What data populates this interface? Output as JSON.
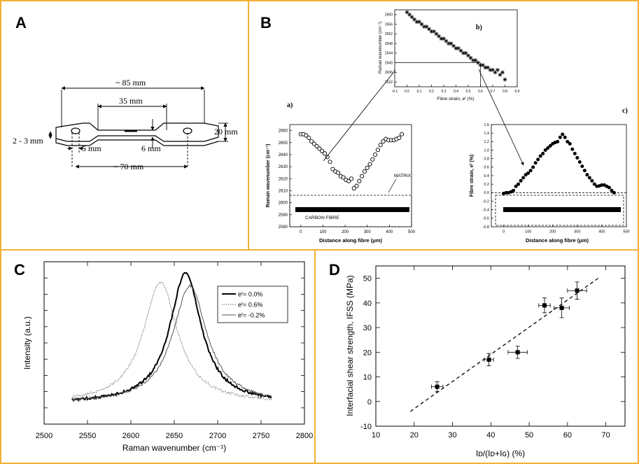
{
  "panels": {
    "A": {
      "letter": "A",
      "dims": {
        "overall_length": "~ 85 mm",
        "gauge_length": "35 mm",
        "width": "20 mm",
        "thickness": "2 - 3 mm",
        "hole_dia": "5 mm",
        "neck_width": "6 mm",
        "hole_spacing": "~ 70 mm"
      }
    },
    "B": {
      "letter": "B",
      "sub_a_label": "a)",
      "sub_b_label": "b)",
      "sub_c_label": "c)",
      "matrix_label": "MATRIX",
      "fibre_label": "CARBON FIBRE",
      "plot_a_xlabel": "Distance along fibre (μm)",
      "plot_a_ylabel": "Raman wavenumber (cm⁻¹)",
      "plot_b_xlabel": "Fibre strain, eᶠ (%)",
      "plot_b_ylabel": "Raman wavenumber (cm⁻¹)",
      "plot_c_xlabel": "Distance along fibre (μm)",
      "plot_c_ylabel": "Fibre strain, eᶠ (%)"
    },
    "C": {
      "letter": "C",
      "xlabel": "Raman wavenumber (cm⁻¹)",
      "ylabel": "Intensity (a.u.)",
      "legend": [
        "eᶠ= 0.0%",
        "eᶠ= 0.6%",
        "eᶠ= -0.2%"
      ]
    },
    "D": {
      "letter": "D",
      "xlabel": "Iᴅ/(Iᴅ+Iɢ) (%)",
      "ylabel": "Interfacial shear strength, IFSS (MPa)"
    }
  },
  "chart_data": [
    {
      "id": "B-a",
      "type": "scatter",
      "xlabel": "Distance along fibre (μm)",
      "ylabel": "Raman wavenumber (cm⁻¹)",
      "xlim": [
        -50,
        500
      ],
      "ylim": [
        2580,
        2665
      ],
      "xticks": [
        0,
        100,
        200,
        300,
        400,
        500
      ],
      "yticks": [
        2580,
        2590,
        2600,
        2610,
        2620,
        2630,
        2640,
        2650,
        2660
      ],
      "x": [
        0,
        12,
        24,
        36,
        48,
        60,
        72,
        84,
        96,
        108,
        120,
        132,
        144,
        156,
        168,
        180,
        192,
        204,
        216,
        228,
        240,
        252,
        264,
        276,
        288,
        300,
        312,
        324,
        336,
        348,
        360,
        372,
        384,
        396,
        408,
        420,
        432,
        444,
        456
      ],
      "y": [
        2657,
        2657,
        2656,
        2654,
        2651,
        2649,
        2647,
        2645,
        2643,
        2641,
        2638,
        2634,
        2628,
        2626,
        2625,
        2622,
        2621,
        2619,
        2618,
        2620,
        2612,
        2614,
        2618,
        2622,
        2626,
        2629,
        2632,
        2636,
        2640,
        2644,
        2648,
        2651,
        2653,
        2652,
        2652,
        2652,
        2653,
        2654,
        2657
      ]
    },
    {
      "id": "B-b",
      "type": "scatter",
      "xlabel": "Fibre strain, eᶠ (%)",
      "ylabel": "Raman wavenumber (cm⁻¹)",
      "xlim": [
        -0.1,
        0.9
      ],
      "ylim": [
        2630,
        2662
      ],
      "xticks": [
        -0.1,
        0.0,
        0.1,
        0.2,
        0.3,
        0.4,
        0.5,
        0.6,
        0.7,
        0.8,
        0.9
      ],
      "yticks": [
        2632,
        2636,
        2640,
        2644,
        2648,
        2652,
        2656,
        2660
      ],
      "x": [
        0.0,
        0.02,
        0.04,
        0.06,
        0.08,
        0.1,
        0.12,
        0.14,
        0.16,
        0.18,
        0.2,
        0.22,
        0.24,
        0.26,
        0.28,
        0.3,
        0.32,
        0.34,
        0.36,
        0.38,
        0.4,
        0.42,
        0.44,
        0.46,
        0.48,
        0.5,
        0.52,
        0.54,
        0.56,
        0.58,
        0.6,
        0.62,
        0.64,
        0.66,
        0.68,
        0.7,
        0.72,
        0.74,
        0.76,
        0.78,
        0.8
      ],
      "y": [
        2661,
        2660,
        2659,
        2658,
        2657,
        2657,
        2656,
        2655,
        2655,
        2654,
        2653,
        2653,
        2652,
        2651,
        2650,
        2650,
        2649,
        2648,
        2648,
        2647,
        2646,
        2646,
        2645,
        2644,
        2644,
        2643,
        2642,
        2641,
        2641,
        2640,
        2639,
        2639,
        2638,
        2638,
        2637,
        2637,
        2636,
        2637,
        2635,
        2636,
        2633
      ],
      "guide": {
        "x": 0.6,
        "y": 2640
      }
    },
    {
      "id": "B-c",
      "type": "scatter",
      "xlabel": "Distance along fibre (μm)",
      "ylabel": "Fibre strain, eᶠ (%)",
      "xlim": [
        -50,
        500
      ],
      "ylim": [
        -0.8,
        1.6
      ],
      "xticks": [
        0,
        100,
        200,
        300,
        400,
        500
      ],
      "yticks": [
        -0.8,
        -0.6,
        -0.4,
        -0.2,
        0.0,
        0.2,
        0.4,
        0.6,
        0.8,
        1.0,
        1.2,
        1.4,
        1.6
      ],
      "x": [
        0,
        10,
        20,
        30,
        40,
        50,
        60,
        70,
        80,
        90,
        100,
        110,
        120,
        130,
        140,
        150,
        160,
        170,
        180,
        190,
        200,
        210,
        220,
        230,
        240,
        250,
        260,
        270,
        280,
        290,
        300,
        310,
        320,
        330,
        340,
        350,
        360,
        370,
        380,
        390,
        400,
        410,
        420,
        430,
        440,
        450
      ],
      "y": [
        -0.02,
        0.0,
        0.0,
        0.02,
        0.05,
        0.15,
        0.2,
        0.28,
        0.35,
        0.42,
        0.46,
        0.52,
        0.6,
        0.7,
        0.78,
        0.86,
        0.92,
        1.0,
        1.05,
        1.1,
        1.15,
        1.18,
        1.2,
        1.3,
        1.37,
        1.3,
        1.2,
        1.15,
        1.02,
        0.92,
        0.82,
        0.72,
        0.62,
        0.52,
        0.42,
        0.35,
        0.28,
        0.2,
        0.15,
        0.16,
        0.18,
        0.18,
        0.15,
        0.12,
        0.05,
        0.0
      ]
    },
    {
      "id": "C",
      "type": "line",
      "xlabel": "Raman wavenumber (cm⁻¹)",
      "ylabel": "Intensity (a.u.)",
      "xlim": [
        2500,
        2800
      ],
      "xticks": [
        2500,
        2550,
        2600,
        2650,
        2700,
        2750,
        2800
      ],
      "x_range": [
        2532,
        2762
      ],
      "series": [
        {
          "name": "eᶠ= 0.0%",
          "center": 2663,
          "width": 22,
          "height": 1.0,
          "style": "solid-thick"
        },
        {
          "name": "eᶠ= 0.6%",
          "center": 2634,
          "width": 24,
          "height": 0.93,
          "style": "dotted"
        },
        {
          "name": "eᶠ= -0.2%",
          "center": 2668,
          "width": 24,
          "height": 0.9,
          "style": "solid-thin"
        }
      ]
    },
    {
      "id": "D",
      "type": "scatter",
      "xlabel": "Iᴅ/(Iᴅ+Iɢ) (%)",
      "ylabel": "Interfacial shear strength, IFSS (MPa)",
      "xlim": [
        10,
        75
      ],
      "ylim": [
        -10,
        55
      ],
      "xticks": [
        10,
        20,
        30,
        40,
        50,
        60,
        70
      ],
      "yticks": [
        -10,
        0,
        10,
        20,
        30,
        40,
        50
      ],
      "points": [
        {
          "x": 26,
          "y": 6,
          "xerr": 1.5,
          "yerr": 2
        },
        {
          "x": 39.5,
          "y": 17,
          "xerr": 1.2,
          "yerr": 2.5
        },
        {
          "x": 47,
          "y": 20,
          "xerr": 2.5,
          "yerr": 2.5
        },
        {
          "x": 54,
          "y": 39,
          "xerr": 1.5,
          "yerr": 3
        },
        {
          "x": 58.5,
          "y": 38,
          "xerr": 2,
          "yerr": 4
        },
        {
          "x": 62.5,
          "y": 45,
          "xerr": 2.5,
          "yerr": 3.5
        }
      ],
      "fit": {
        "x": [
          19,
          68
        ],
        "y": [
          -4,
          50
        ]
      }
    }
  ]
}
